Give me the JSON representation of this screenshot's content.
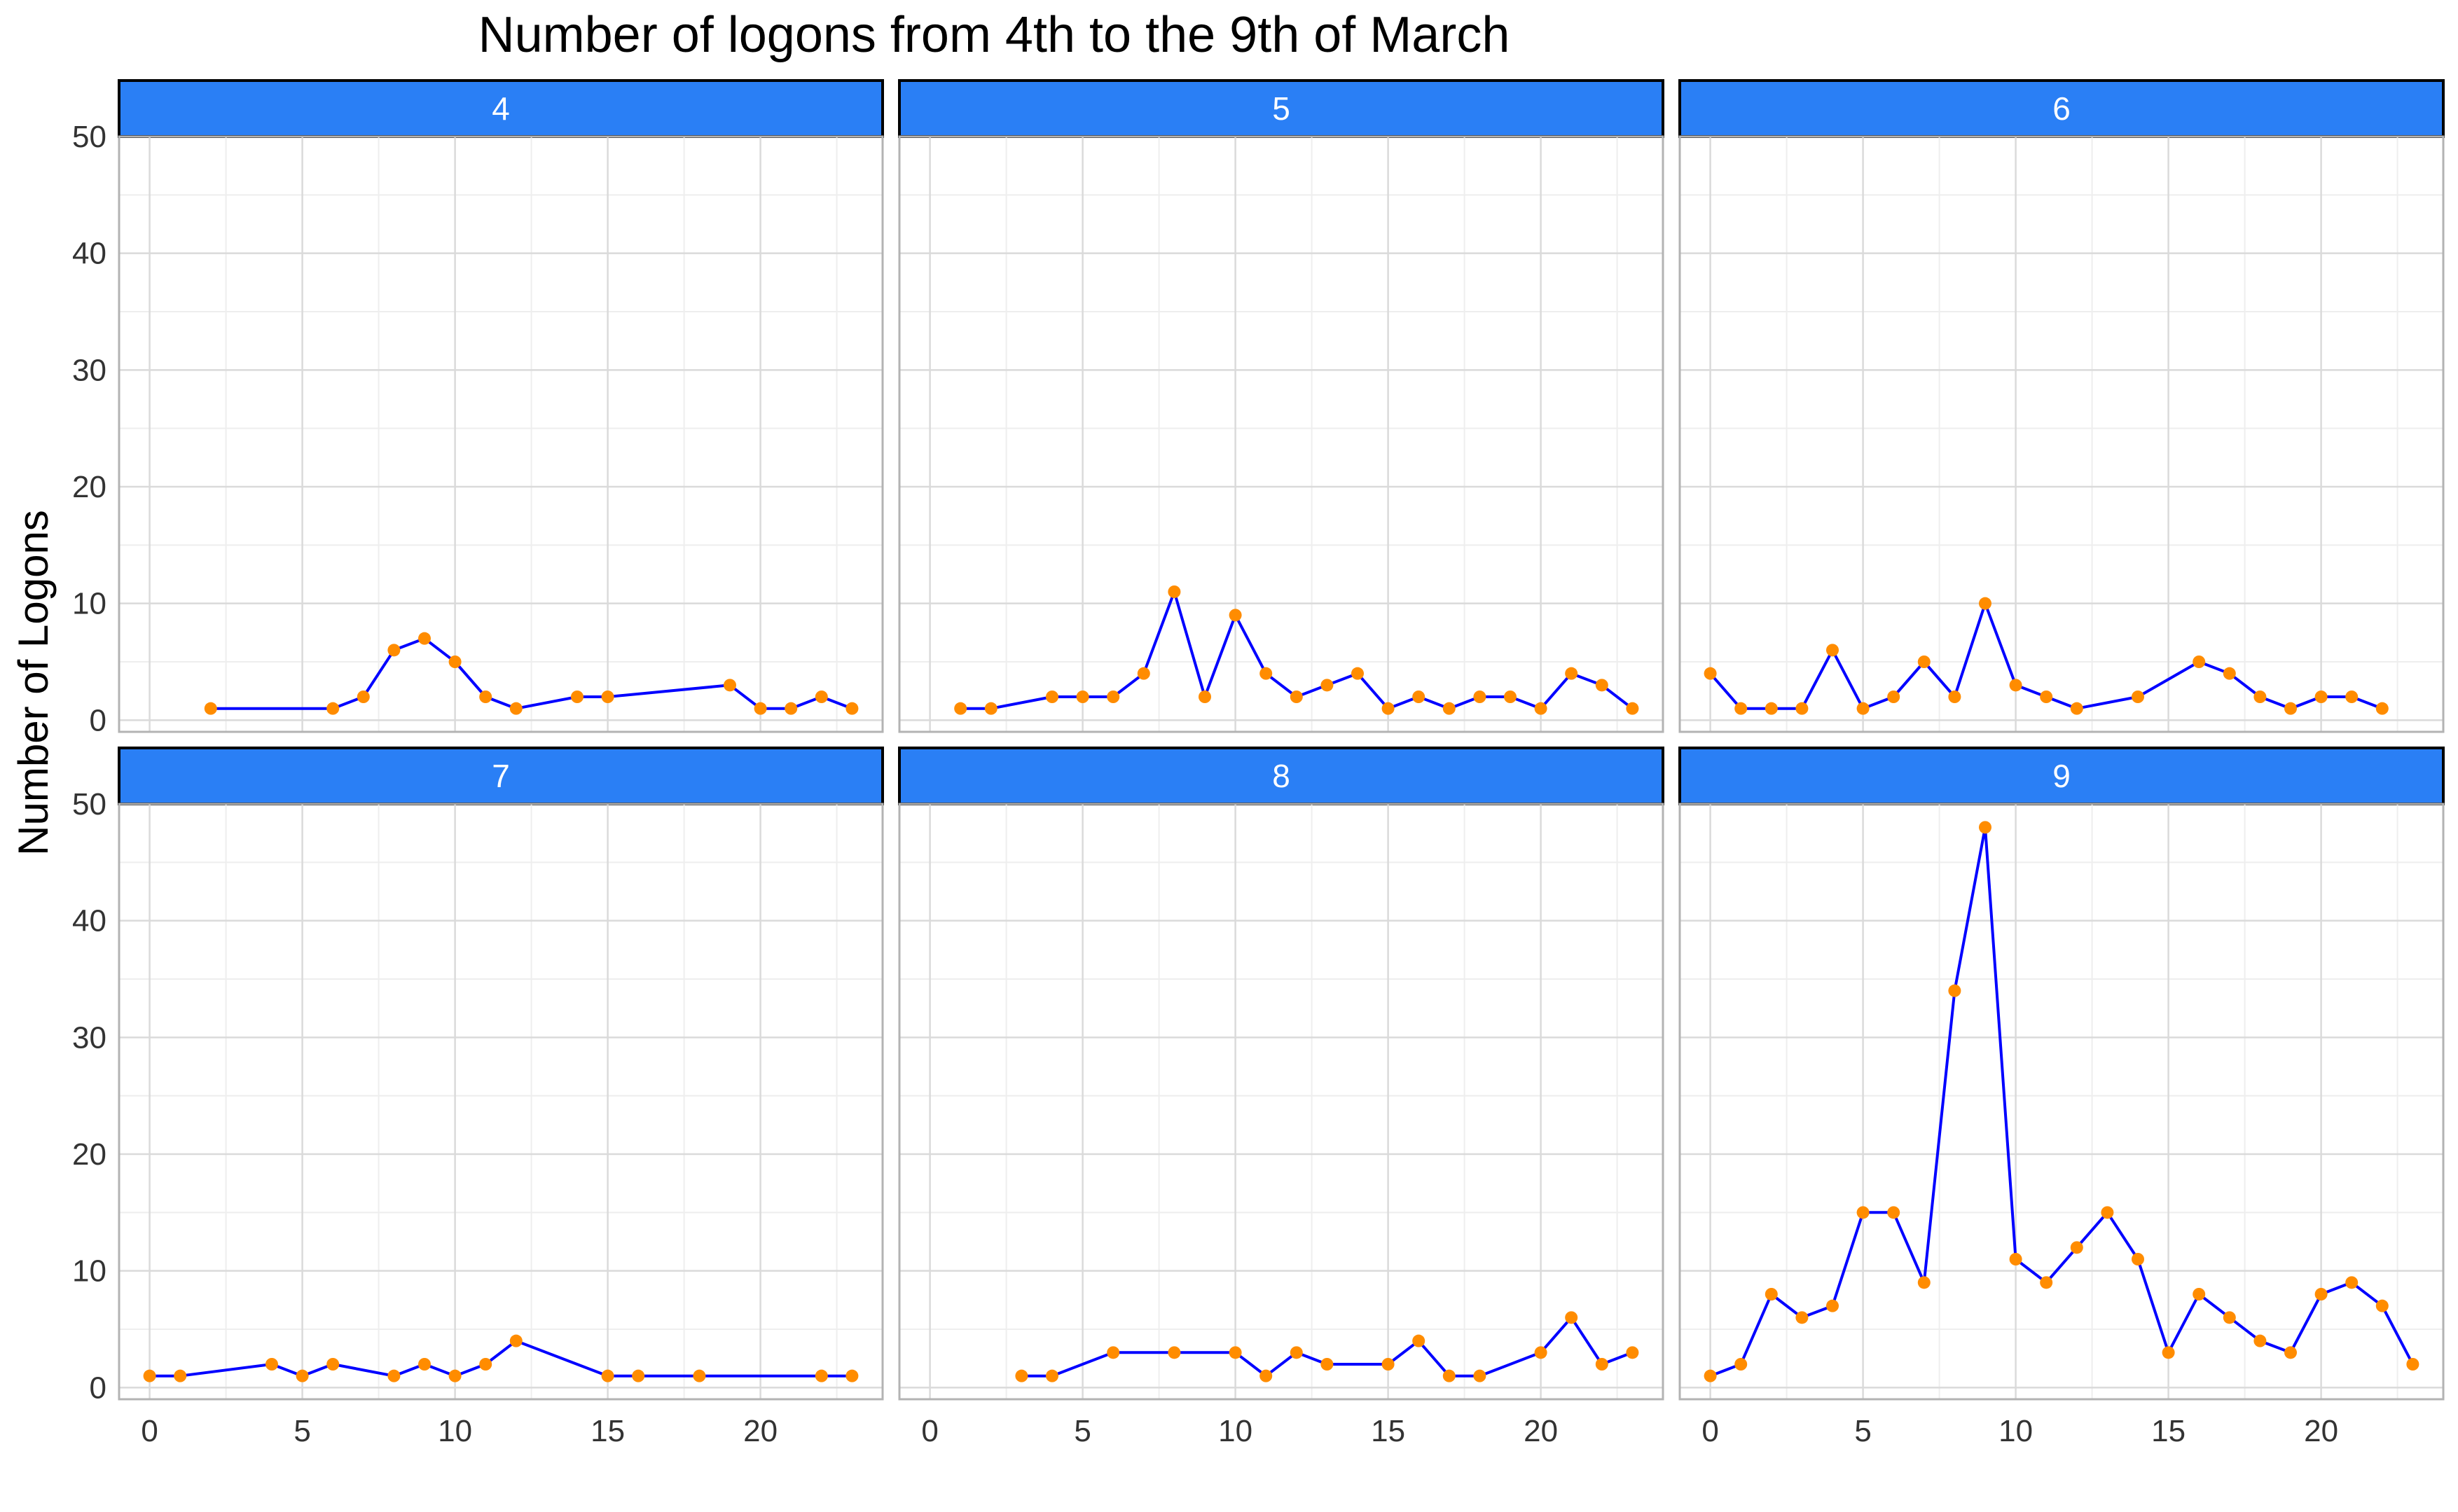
{
  "chart_data": {
    "type": "line",
    "title": "Number of logons from 4th to the 9th of March",
    "xlabel": "",
    "ylabel": "Number of Logons",
    "xlim": [
      -1,
      24
    ],
    "ylim": [
      -1,
      50
    ],
    "x_ticks": [
      0,
      5,
      10,
      15,
      20
    ],
    "y_ticks": [
      0,
      10,
      20,
      30,
      40,
      50
    ],
    "grid": true,
    "colors": {
      "line": "#0000ff",
      "point": "#ff8c00",
      "strip_fill": "#2a7ff5",
      "strip_border": "#000000",
      "strip_text": "#ffffff",
      "panel_border": "#b3b3b3",
      "grid_major": "#dadada",
      "grid_minor": "#eeeeee"
    },
    "panels": [
      {
        "label": "4",
        "x": [
          2,
          6,
          7,
          8,
          9,
          10,
          11,
          12,
          14,
          15,
          19,
          20,
          21,
          22,
          23
        ],
        "y": [
          1,
          1,
          2,
          6,
          7,
          5,
          2,
          1,
          2,
          2,
          3,
          1,
          1,
          2,
          1
        ]
      },
      {
        "label": "5",
        "x": [
          1,
          2,
          4,
          5,
          6,
          7,
          8,
          9,
          10,
          11,
          12,
          13,
          14,
          15,
          16,
          17,
          18,
          19,
          20,
          21,
          22,
          23
        ],
        "y": [
          1,
          1,
          2,
          2,
          2,
          4,
          11,
          2,
          9,
          4,
          2,
          3,
          4,
          1,
          2,
          1,
          2,
          2,
          1,
          4,
          3,
          1
        ]
      },
      {
        "label": "6",
        "x": [
          0,
          1,
          2,
          3,
          4,
          5,
          6,
          7,
          8,
          9,
          10,
          11,
          12,
          14,
          16,
          17,
          18,
          19,
          20,
          21,
          22
        ],
        "y": [
          4,
          1,
          1,
          1,
          6,
          1,
          2,
          5,
          2,
          10,
          3,
          2,
          1,
          2,
          5,
          4,
          2,
          1,
          2,
          2,
          1
        ]
      },
      {
        "label": "7",
        "x": [
          0,
          1,
          4,
          5,
          6,
          8,
          9,
          10,
          11,
          12,
          15,
          16,
          18,
          22,
          23
        ],
        "y": [
          1,
          1,
          2,
          1,
          2,
          1,
          2,
          1,
          2,
          4,
          1,
          1,
          1,
          1,
          1
        ]
      },
      {
        "label": "8",
        "x": [
          3,
          4,
          6,
          8,
          10,
          11,
          12,
          13,
          15,
          16,
          17,
          18,
          20,
          21,
          22,
          23
        ],
        "y": [
          1,
          1,
          3,
          3,
          3,
          1,
          3,
          2,
          2,
          4,
          1,
          1,
          3,
          6,
          2,
          3
        ]
      },
      {
        "label": "9",
        "x": [
          0,
          1,
          2,
          3,
          4,
          5,
          6,
          7,
          8,
          9,
          10,
          11,
          12,
          13,
          14,
          15,
          16,
          17,
          18,
          19,
          20,
          21,
          22,
          23
        ],
        "y": [
          1,
          2,
          8,
          6,
          7,
          15,
          15,
          9,
          34,
          48,
          11,
          9,
          12,
          15,
          11,
          3,
          8,
          6,
          4,
          3,
          8,
          9,
          7,
          2
        ]
      }
    ]
  }
}
